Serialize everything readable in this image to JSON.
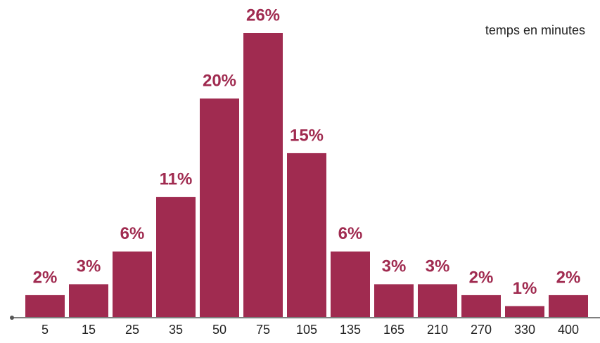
{
  "chart_data": {
    "type": "bar",
    "annotation": "temps en minutes",
    "categories": [
      "5",
      "15",
      "25",
      "35",
      "50",
      "75",
      "105",
      "135",
      "165",
      "210",
      "270",
      "330",
      "400"
    ],
    "values": [
      2,
      3,
      6,
      11,
      20,
      26,
      15,
      6,
      3,
      3,
      2,
      1,
      2
    ],
    "value_labels": [
      "2%",
      "3%",
      "6%",
      "11%",
      "20%",
      "26%",
      "15%",
      "6%",
      "3%",
      "3%",
      "2%",
      "1%",
      "2%"
    ],
    "color": "#a02b50"
  }
}
